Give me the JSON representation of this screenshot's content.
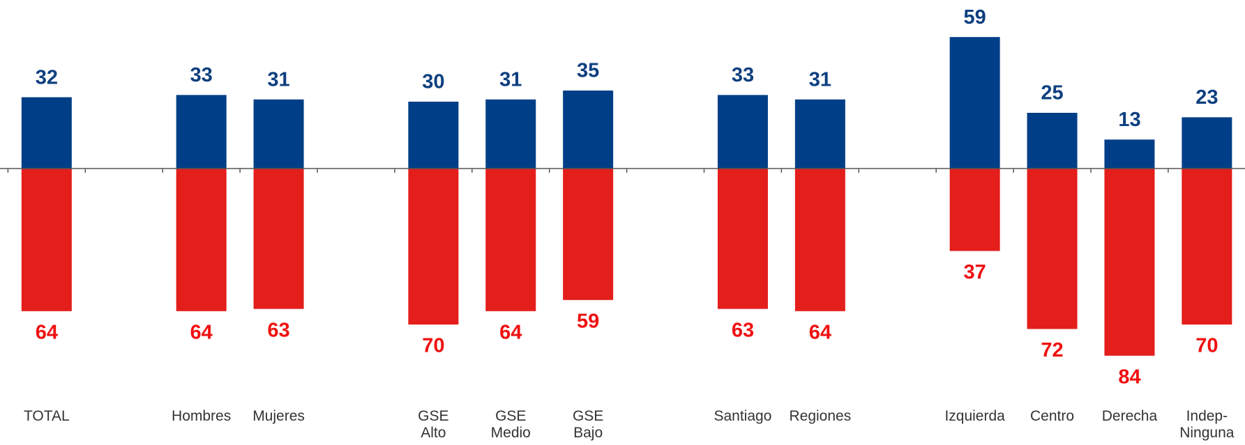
{
  "chart_data": {
    "type": "diverging_bar",
    "categories": [
      "TOTAL",
      null,
      "Hombres",
      "Mujeres",
      null,
      "GSE\nAlto",
      "GSE\nMedio",
      "GSE\nBajo",
      null,
      "Santiago",
      "Regiones",
      null,
      "Izquierda",
      "Centro",
      "Derecha",
      "Indep-\nNinguna"
    ],
    "series": [
      {
        "color": "#003f87",
        "label_color": "#0e3f7f",
        "values": [
          32,
          null,
          33,
          31,
          null,
          30,
          31,
          35,
          null,
          33,
          31,
          null,
          59,
          25,
          13,
          23
        ]
      },
      {
        "color": "#e31e1b",
        "label_color": "#f01010",
        "values": [
          -64,
          null,
          -64,
          -63,
          null,
          -70,
          -64,
          -59,
          null,
          -63,
          -64,
          null,
          -37,
          -72,
          -84,
          -70
        ],
        "value_labels": [
          "64",
          null,
          "64",
          "63",
          null,
          "70",
          "64",
          "59",
          null,
          "63",
          "64",
          null,
          "37",
          "72",
          "84",
          "70"
        ]
      }
    ]
  }
}
